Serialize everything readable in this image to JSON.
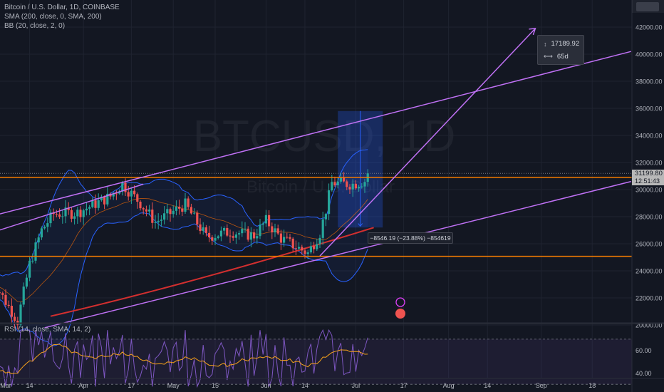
{
  "legends": {
    "main": "Bitcoin / U.S. Dollar, 1D, COINBASE",
    "sma": "SMA (200, close, 0, SMA, 200)",
    "bb": "BB (20, close, 2, 0)",
    "rsi": "RSI (14, close, SMA, 14, 2)"
  },
  "watermark": {
    "symbol": "BTCUSD, 1D",
    "name": "Bitcoin / U.S. Dollar"
  },
  "tooltip": {
    "price_range": "17189.92",
    "bars": "65d"
  },
  "measure_label": "−8546.19 (−23.88%) −854619",
  "price_tag": {
    "price": "31199.80",
    "countdown": "12:51:43"
  },
  "colors": {
    "background": "#131722",
    "up": "#26a69a",
    "down": "#ef5350",
    "orange": "#f57c00",
    "purple": "#c071f5",
    "sma": "#d32f2f",
    "bb": "#2962ff",
    "rsi": "#7e57c2"
  },
  "chart_data": {
    "type": "candlestick",
    "y_axis": {
      "ticks": [
        20000,
        22000,
        24000,
        26000,
        28000,
        30000,
        32000,
        34000,
        36000,
        38000,
        40000,
        42000
      ],
      "tick_labels": [
        "20000.00",
        "22000.00",
        "24000.00",
        "26000.00",
        "28000.00",
        "30000.00",
        "32000.00",
        "34000.00",
        "36000.00",
        "38000.00",
        "40000.00",
        "42000.00"
      ],
      "range": [
        19400,
        43000
      ]
    },
    "x_axis": {
      "tick_labels": [
        "Mar",
        "14",
        "Apr",
        "17",
        "May",
        "15",
        "Jun",
        "14",
        "Jul",
        "17",
        "Aug",
        "14",
        "Sep",
        "18"
      ],
      "range": [
        "2023-03-01",
        "2023-09-22"
      ]
    },
    "rsi": {
      "tick_labels": [
        "60.00",
        "40.00"
      ],
      "ticks": [
        60,
        40
      ],
      "range": [
        25,
        80
      ],
      "levels": [
        70,
        30
      ]
    },
    "horizontal_levels": [
      30900,
      25070
    ],
    "last_price": 31199.8,
    "candle_count": 127,
    "candle_anchors": [
      {
        "date": "2023-03-01",
        "price": 23500
      },
      {
        "date": "2023-03-10",
        "price": 20300
      },
      {
        "date": "2023-03-14",
        "price": 24500
      },
      {
        "date": "2023-03-18",
        "price": 27000
      },
      {
        "date": "2023-03-22",
        "price": 28200
      },
      {
        "date": "2023-03-30",
        "price": 28300
      },
      {
        "date": "2023-04-10",
        "price": 29500
      },
      {
        "date": "2023-04-14",
        "price": 30400
      },
      {
        "date": "2023-04-20",
        "price": 29000
      },
      {
        "date": "2023-04-25",
        "price": 27600
      },
      {
        "date": "2023-05-05",
        "price": 28900
      },
      {
        "date": "2023-05-12",
        "price": 26500
      },
      {
        "date": "2023-05-20",
        "price": 26900
      },
      {
        "date": "2023-05-28",
        "price": 26600
      },
      {
        "date": "2023-06-01",
        "price": 27700
      },
      {
        "date": "2023-06-06",
        "price": 26400
      },
      {
        "date": "2023-06-10",
        "price": 25900
      },
      {
        "date": "2023-06-15",
        "price": 25300
      },
      {
        "date": "2023-06-19",
        "price": 26800
      },
      {
        "date": "2023-06-21",
        "price": 28500
      },
      {
        "date": "2023-06-23",
        "price": 30500
      },
      {
        "date": "2023-06-30",
        "price": 30400
      },
      {
        "date": "2023-07-05",
        "price": 30700
      },
      {
        "date": "2023-07-06",
        "price": 31199.8
      }
    ]
  }
}
